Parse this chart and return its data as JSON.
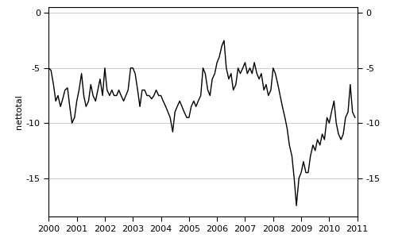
{
  "title": "",
  "ylabel": "nettotal",
  "xlim": [
    2000,
    2011
  ],
  "ylim": [
    -18.5,
    0.5
  ],
  "yticks": [
    0,
    -5,
    -10,
    -15
  ],
  "xticks": [
    2000,
    2001,
    2002,
    2003,
    2004,
    2005,
    2006,
    2007,
    2008,
    2009,
    2010,
    2011
  ],
  "line_color": "#000000",
  "background_color": "#ffffff",
  "grid_color": "#cccccc",
  "data": [
    [
      2000.0,
      -5.0
    ],
    [
      2000.08,
      -5.2
    ],
    [
      2000.17,
      -6.5
    ],
    [
      2000.25,
      -8.0
    ],
    [
      2000.33,
      -7.5
    ],
    [
      2000.42,
      -8.5
    ],
    [
      2000.5,
      -7.8
    ],
    [
      2000.58,
      -7.0
    ],
    [
      2000.67,
      -6.8
    ],
    [
      2000.75,
      -8.5
    ],
    [
      2000.83,
      -10.0
    ],
    [
      2000.92,
      -9.5
    ],
    [
      2001.0,
      -8.0
    ],
    [
      2001.08,
      -7.0
    ],
    [
      2001.17,
      -5.5
    ],
    [
      2001.25,
      -7.5
    ],
    [
      2001.33,
      -8.5
    ],
    [
      2001.42,
      -8.0
    ],
    [
      2001.5,
      -6.5
    ],
    [
      2001.58,
      -7.5
    ],
    [
      2001.67,
      -8.0
    ],
    [
      2001.75,
      -7.0
    ],
    [
      2001.83,
      -6.0
    ],
    [
      2001.92,
      -7.5
    ],
    [
      2002.0,
      -5.0
    ],
    [
      2002.08,
      -7.0
    ],
    [
      2002.17,
      -7.5
    ],
    [
      2002.25,
      -7.0
    ],
    [
      2002.33,
      -7.5
    ],
    [
      2002.42,
      -7.5
    ],
    [
      2002.5,
      -7.0
    ],
    [
      2002.58,
      -7.5
    ],
    [
      2002.67,
      -8.0
    ],
    [
      2002.75,
      -7.5
    ],
    [
      2002.83,
      -7.0
    ],
    [
      2002.92,
      -5.0
    ],
    [
      2003.0,
      -5.0
    ],
    [
      2003.08,
      -5.5
    ],
    [
      2003.17,
      -7.0
    ],
    [
      2003.25,
      -8.5
    ],
    [
      2003.33,
      -7.0
    ],
    [
      2003.42,
      -7.0
    ],
    [
      2003.5,
      -7.5
    ],
    [
      2003.58,
      -7.5
    ],
    [
      2003.67,
      -7.8
    ],
    [
      2003.75,
      -7.5
    ],
    [
      2003.83,
      -7.0
    ],
    [
      2003.92,
      -7.5
    ],
    [
      2004.0,
      -7.5
    ],
    [
      2004.08,
      -8.0
    ],
    [
      2004.17,
      -8.5
    ],
    [
      2004.25,
      -9.0
    ],
    [
      2004.33,
      -9.5
    ],
    [
      2004.42,
      -10.8
    ],
    [
      2004.5,
      -9.0
    ],
    [
      2004.58,
      -8.5
    ],
    [
      2004.67,
      -8.0
    ],
    [
      2004.75,
      -8.5
    ],
    [
      2004.83,
      -9.0
    ],
    [
      2004.92,
      -9.5
    ],
    [
      2005.0,
      -9.5
    ],
    [
      2005.08,
      -8.5
    ],
    [
      2005.17,
      -8.0
    ],
    [
      2005.25,
      -8.5
    ],
    [
      2005.33,
      -8.0
    ],
    [
      2005.42,
      -7.5
    ],
    [
      2005.5,
      -5.0
    ],
    [
      2005.58,
      -5.5
    ],
    [
      2005.67,
      -7.0
    ],
    [
      2005.75,
      -7.5
    ],
    [
      2005.83,
      -6.0
    ],
    [
      2005.92,
      -5.5
    ],
    [
      2006.0,
      -4.5
    ],
    [
      2006.08,
      -4.0
    ],
    [
      2006.17,
      -3.0
    ],
    [
      2006.25,
      -2.5
    ],
    [
      2006.33,
      -5.0
    ],
    [
      2006.42,
      -6.0
    ],
    [
      2006.5,
      -5.5
    ],
    [
      2006.58,
      -7.0
    ],
    [
      2006.67,
      -6.5
    ],
    [
      2006.75,
      -5.0
    ],
    [
      2006.83,
      -5.5
    ],
    [
      2006.92,
      -5.0
    ],
    [
      2007.0,
      -4.5
    ],
    [
      2007.08,
      -5.5
    ],
    [
      2007.17,
      -5.0
    ],
    [
      2007.25,
      -5.5
    ],
    [
      2007.33,
      -4.5
    ],
    [
      2007.42,
      -5.5
    ],
    [
      2007.5,
      -6.0
    ],
    [
      2007.58,
      -5.5
    ],
    [
      2007.67,
      -7.0
    ],
    [
      2007.75,
      -6.5
    ],
    [
      2007.83,
      -7.5
    ],
    [
      2007.92,
      -7.0
    ],
    [
      2008.0,
      -5.0
    ],
    [
      2008.08,
      -5.5
    ],
    [
      2008.17,
      -6.5
    ],
    [
      2008.25,
      -7.5
    ],
    [
      2008.33,
      -8.5
    ],
    [
      2008.42,
      -9.5
    ],
    [
      2008.5,
      -10.5
    ],
    [
      2008.58,
      -12.0
    ],
    [
      2008.67,
      -13.0
    ],
    [
      2008.75,
      -15.0
    ],
    [
      2008.83,
      -17.5
    ],
    [
      2008.92,
      -15.0
    ],
    [
      2009.0,
      -14.5
    ],
    [
      2009.08,
      -13.5
    ],
    [
      2009.17,
      -14.5
    ],
    [
      2009.25,
      -14.5
    ],
    [
      2009.33,
      -13.0
    ],
    [
      2009.42,
      -12.0
    ],
    [
      2009.5,
      -12.5
    ],
    [
      2009.58,
      -11.5
    ],
    [
      2009.67,
      -12.0
    ],
    [
      2009.75,
      -11.0
    ],
    [
      2009.83,
      -11.5
    ],
    [
      2009.92,
      -9.5
    ],
    [
      2010.0,
      -10.0
    ],
    [
      2010.08,
      -9.0
    ],
    [
      2010.17,
      -8.0
    ],
    [
      2010.25,
      -10.0
    ],
    [
      2010.33,
      -11.0
    ],
    [
      2010.42,
      -11.5
    ],
    [
      2010.5,
      -11.0
    ],
    [
      2010.58,
      -9.5
    ],
    [
      2010.67,
      -9.0
    ],
    [
      2010.75,
      -6.5
    ],
    [
      2010.83,
      -9.0
    ],
    [
      2010.92,
      -9.5
    ]
  ]
}
